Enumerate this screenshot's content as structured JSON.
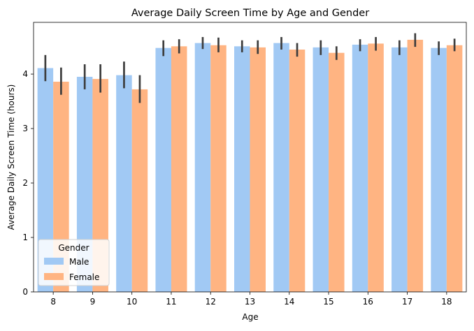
{
  "chart_data": {
    "type": "bar",
    "title": "Average Daily Screen Time by Age and Gender",
    "xlabel": "Age",
    "ylabel": "Average Daily Screen Time (hours)",
    "categories": [
      "8",
      "9",
      "10",
      "11",
      "12",
      "13",
      "14",
      "15",
      "16",
      "17",
      "18"
    ],
    "ylim": [
      0,
      4.95
    ],
    "yticks": [
      0,
      1,
      2,
      3,
      4
    ],
    "grid": false,
    "legend": {
      "title": "Gender",
      "placement": "lower-left"
    },
    "series": [
      {
        "name": "Male",
        "color": "#a1c9f4",
        "values": [
          4.11,
          3.95,
          3.98,
          4.48,
          4.57,
          4.51,
          4.57,
          4.49,
          4.54,
          4.49,
          4.48
        ],
        "err_low": [
          3.87,
          3.72,
          3.74,
          4.33,
          4.46,
          4.4,
          4.45,
          4.35,
          4.42,
          4.35,
          4.35
        ],
        "err_high": [
          4.35,
          4.18,
          4.23,
          4.62,
          4.68,
          4.62,
          4.68,
          4.62,
          4.64,
          4.62,
          4.6
        ]
      },
      {
        "name": "Female",
        "color": "#ffb482",
        "values": [
          3.86,
          3.91,
          3.72,
          4.51,
          4.53,
          4.49,
          4.45,
          4.39,
          4.56,
          4.63,
          4.53
        ],
        "err_low": [
          3.62,
          3.66,
          3.47,
          4.38,
          4.4,
          4.37,
          4.32,
          4.26,
          4.43,
          4.5,
          4.42
        ],
        "err_high": [
          4.12,
          4.18,
          3.98,
          4.64,
          4.67,
          4.62,
          4.57,
          4.51,
          4.68,
          4.75,
          4.65
        ]
      }
    ]
  }
}
